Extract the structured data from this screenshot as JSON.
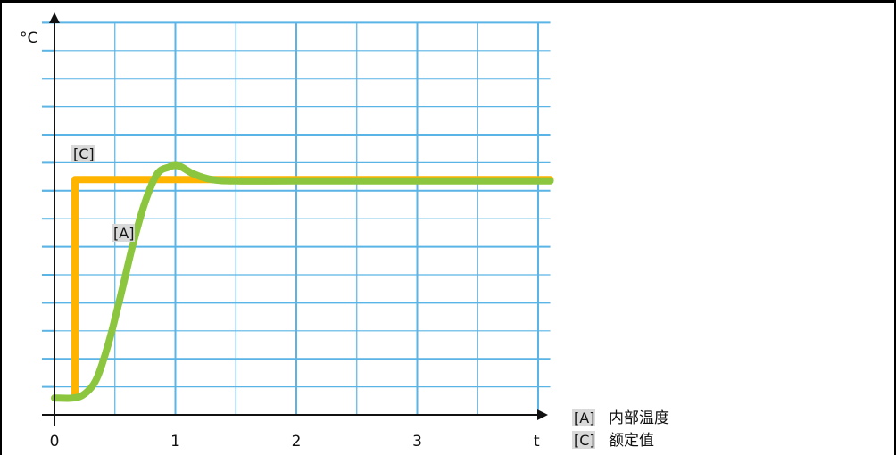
{
  "chart_data": {
    "type": "line",
    "xlabel": "t",
    "ylabel": "°C",
    "xlim": [
      0,
      4.1
    ],
    "ylim": [
      0,
      14
    ],
    "x_ticks": [
      "0",
      "1",
      "2",
      "3"
    ],
    "grid": true,
    "legend_placement": "bottom-right",
    "series": [
      {
        "tag": "[C]",
        "name": "额定值",
        "color": "#ffb400",
        "x": [
          0.17,
          0.17,
          4.1
        ],
        "y": [
          0.6,
          8.4,
          8.4
        ]
      },
      {
        "tag": "[A]",
        "name": "内部温度",
        "color": "#8cc63f",
        "x": [
          0,
          0.15,
          0.25,
          0.35,
          0.45,
          0.55,
          0.65,
          0.75,
          0.85,
          0.95,
          1.0,
          1.05,
          1.15,
          1.3,
          1.5,
          2.0,
          3.0,
          4.1
        ],
        "y": [
          0.6,
          0.6,
          0.75,
          1.3,
          2.6,
          4.3,
          6.1,
          7.6,
          8.6,
          8.85,
          8.9,
          8.85,
          8.6,
          8.4,
          8.35,
          8.35,
          8.35,
          8.35
        ]
      }
    ],
    "legend": [
      {
        "tag": "[A]",
        "label": "内部温度"
      },
      {
        "tag": "[C]",
        "label": "额定值"
      }
    ]
  }
}
